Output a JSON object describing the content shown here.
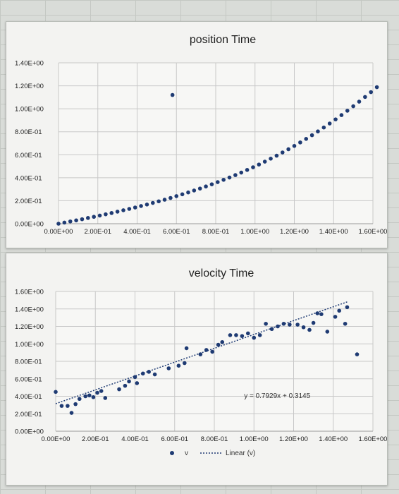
{
  "colors": {
    "marker": "#1f3b73",
    "grid": "#c8c8c8",
    "trend": "#1f3b73"
  },
  "chart_data": [
    {
      "type": "scatter",
      "title": "position Time",
      "xlim": [
        0,
        1.6
      ],
      "ylim": [
        0,
        1.4
      ],
      "x_ticks": [
        "0.00E+00",
        "2.00E-01",
        "4.00E-01",
        "6.00E-01",
        "8.00E-01",
        "1.00E+00",
        "1.20E+00",
        "1.40E+00",
        "1.60E+00"
      ],
      "y_ticks": [
        "0.00E+00",
        "2.00E-01",
        "4.00E-01",
        "6.00E-01",
        "8.00E-01",
        "1.00E+00",
        "1.20E+00",
        "1.40E+00"
      ],
      "grid": true,
      "series": [
        {
          "points": [
            [
              0.0,
              0.0
            ],
            [
              0.03,
              0.01
            ],
            [
              0.06,
              0.02
            ],
            [
              0.09,
              0.029
            ],
            [
              0.12,
              0.039
            ],
            [
              0.15,
              0.05
            ],
            [
              0.18,
              0.06
            ],
            [
              0.21,
              0.071
            ],
            [
              0.24,
              0.082
            ],
            [
              0.27,
              0.093
            ],
            [
              0.3,
              0.105
            ],
            [
              0.33,
              0.117
            ],
            [
              0.36,
              0.129
            ],
            [
              0.39,
              0.141
            ],
            [
              0.42,
              0.154
            ],
            [
              0.45,
              0.167
            ],
            [
              0.48,
              0.181
            ],
            [
              0.51,
              0.195
            ],
            [
              0.54,
              0.209
            ],
            [
              0.57,
              0.224
            ],
            [
              0.6,
              0.24
            ],
            [
              0.63,
              0.256
            ],
            [
              0.66,
              0.272
            ],
            [
              0.69,
              0.289
            ],
            [
              0.72,
              0.306
            ],
            [
              0.75,
              0.324
            ],
            [
              0.78,
              0.343
            ],
            [
              0.81,
              0.362
            ],
            [
              0.84,
              0.382
            ],
            [
              0.87,
              0.402
            ],
            [
              0.9,
              0.423
            ],
            [
              0.93,
              0.445
            ],
            [
              0.96,
              0.468
            ],
            [
              0.99,
              0.491
            ],
            [
              1.02,
              0.515
            ],
            [
              1.05,
              0.54
            ],
            [
              1.08,
              0.566
            ],
            [
              1.11,
              0.592
            ],
            [
              1.14,
              0.62
            ],
            [
              1.17,
              0.648
            ],
            [
              1.2,
              0.677
            ],
            [
              1.23,
              0.707
            ],
            [
              1.26,
              0.738
            ],
            [
              1.29,
              0.77
            ],
            [
              1.32,
              0.803
            ],
            [
              1.35,
              0.837
            ],
            [
              1.38,
              0.872
            ],
            [
              1.41,
              0.908
            ],
            [
              1.44,
              0.945
            ],
            [
              1.47,
              0.983
            ],
            [
              1.5,
              1.022
            ],
            [
              1.53,
              1.062
            ],
            [
              1.56,
              1.103
            ],
            [
              1.59,
              1.145
            ],
            [
              1.62,
              1.188
            ],
            [
              0.58,
              1.12
            ]
          ]
        }
      ]
    },
    {
      "type": "scatter",
      "title": "velocity Time",
      "xlim": [
        0,
        1.6
      ],
      "ylim": [
        0,
        1.6
      ],
      "x_ticks": [
        "0.00E+00",
        "2.00E-01",
        "4.00E-01",
        "6.00E-01",
        "8.00E-01",
        "1.00E+00",
        "1.20E+00",
        "1.40E+00",
        "1.60E+00"
      ],
      "y_ticks": [
        "0.00E+00",
        "2.00E-01",
        "4.00E-01",
        "6.00E-01",
        "8.00E-01",
        "1.00E+00",
        "1.20E+00",
        "1.40E+00",
        "1.60E+00"
      ],
      "grid": true,
      "equation": "y = 0.7929x + 0.3145",
      "trendline": {
        "slope": 0.7929,
        "intercept": 0.3145,
        "x_range": [
          0,
          1.47
        ]
      },
      "legend": {
        "marker_label": "v",
        "trend_label": "Linear (v)",
        "position": "bottom"
      },
      "series": [
        {
          "name": "v",
          "points": [
            [
              0.0,
              0.45
            ],
            [
              0.03,
              0.29
            ],
            [
              0.06,
              0.29
            ],
            [
              0.08,
              0.21
            ],
            [
              0.1,
              0.31
            ],
            [
              0.12,
              0.37
            ],
            [
              0.15,
              0.4
            ],
            [
              0.17,
              0.41
            ],
            [
              0.19,
              0.39
            ],
            [
              0.21,
              0.44
            ],
            [
              0.23,
              0.46
            ],
            [
              0.25,
              0.38
            ],
            [
              0.32,
              0.48
            ],
            [
              0.35,
              0.52
            ],
            [
              0.37,
              0.57
            ],
            [
              0.4,
              0.62
            ],
            [
              0.41,
              0.55
            ],
            [
              0.44,
              0.66
            ],
            [
              0.47,
              0.68
            ],
            [
              0.5,
              0.65
            ],
            [
              0.57,
              0.72
            ],
            [
              0.62,
              0.75
            ],
            [
              0.65,
              0.78
            ],
            [
              0.66,
              0.95
            ],
            [
              0.73,
              0.88
            ],
            [
              0.76,
              0.93
            ],
            [
              0.79,
              0.91
            ],
            [
              0.82,
              0.99
            ],
            [
              0.84,
              1.02
            ],
            [
              0.88,
              1.1
            ],
            [
              0.91,
              1.1
            ],
            [
              0.94,
              1.09
            ],
            [
              0.97,
              1.12
            ],
            [
              1.0,
              1.07
            ],
            [
              1.03,
              1.1
            ],
            [
              1.06,
              1.23
            ],
            [
              1.09,
              1.17
            ],
            [
              1.12,
              1.2
            ],
            [
              1.15,
              1.23
            ],
            [
              1.18,
              1.22
            ],
            [
              1.22,
              1.22
            ],
            [
              1.25,
              1.19
            ],
            [
              1.28,
              1.16
            ],
            [
              1.3,
              1.24
            ],
            [
              1.32,
              1.35
            ],
            [
              1.34,
              1.34
            ],
            [
              1.37,
              1.14
            ],
            [
              1.41,
              1.31
            ],
            [
              1.43,
              1.38
            ],
            [
              1.46,
              1.23
            ],
            [
              1.47,
              1.42
            ],
            [
              1.52,
              0.88
            ]
          ]
        }
      ]
    }
  ]
}
